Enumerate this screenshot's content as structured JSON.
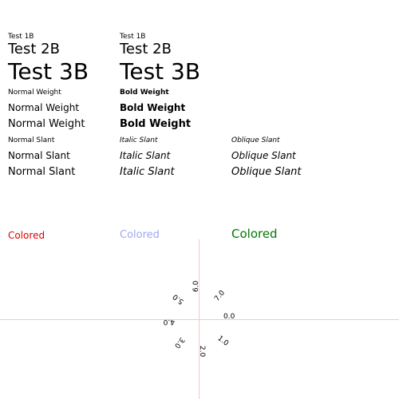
{
  "rows_sizes": {
    "col1": [
      "Test 1B",
      "Test 2B",
      "Test 3B"
    ],
    "col2": [
      "Test 1B",
      "Test 2B",
      "Test 3B"
    ]
  },
  "weights": {
    "normal": [
      "Normal Weight",
      "Normal Weight",
      "Normal Weight"
    ],
    "bold": [
      "Bold Weight",
      "Bold Weight",
      "Bold Weight"
    ]
  },
  "slants": {
    "normal": [
      "Normal Slant",
      "Normal Slant",
      "Normal Slant"
    ],
    "italic": [
      "Italic Slant",
      "Italic Slant",
      "Italic Slant"
    ],
    "oblique": [
      "Oblique Slant",
      "Oblique Slant",
      "Oblique Slant"
    ]
  },
  "colored": {
    "labels": [
      "Colored",
      "Colored",
      "Colored"
    ],
    "colors": [
      "#e00000",
      "#a0a8ee",
      "#007a00"
    ]
  },
  "rotated_labels": [
    "0.0",
    "1.0",
    "2.0",
    "3.0",
    "4.0",
    "5.0",
    "6.0",
    "7.0"
  ],
  "guide_color": "#f5c6c6"
}
